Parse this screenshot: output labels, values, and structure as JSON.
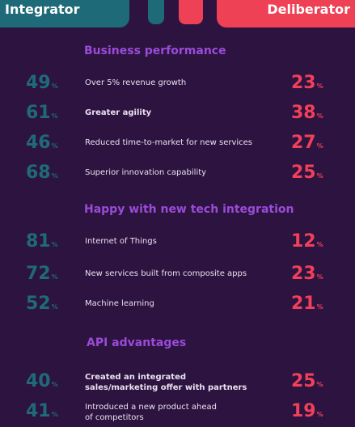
{
  "header": {
    "left_label": "Integrator",
    "right_label": "Deliberator"
  },
  "sections": [
    {
      "title": "Business performance",
      "rows": [
        {
          "left": "49",
          "label": "Over 5% revenue growth",
          "right": "23"
        },
        {
          "left": "61",
          "label": "Greater agility",
          "right": "38"
        },
        {
          "left": "46",
          "label": "Reduced time-to-market for new services",
          "right": "27"
        },
        {
          "left": "68",
          "label": "Superior innovation capability",
          "right": "25"
        }
      ]
    },
    {
      "title": "Happy with new tech integration",
      "rows": [
        {
          "left": "81",
          "label": "Internet of Things",
          "right": "12"
        },
        {
          "left": "72",
          "label": "New services built from composite apps",
          "right": "23"
        },
        {
          "left": "52",
          "label": "Machine learning",
          "right": "21"
        }
      ]
    },
    {
      "title": "API advantages",
      "rows": [
        {
          "left": "40",
          "label": "Created an integrated sales/marketing offer with partners",
          "right": "25"
        },
        {
          "left": "41",
          "label": "Introduced a new product ahead of competitors",
          "right": "19"
        }
      ]
    }
  ],
  "percent_symbol": "%",
  "colors": {
    "background": "#2d1340",
    "integrator": "#1f6a78",
    "deliberator": "#f0405a",
    "section_title": "#9a4bd8"
  }
}
